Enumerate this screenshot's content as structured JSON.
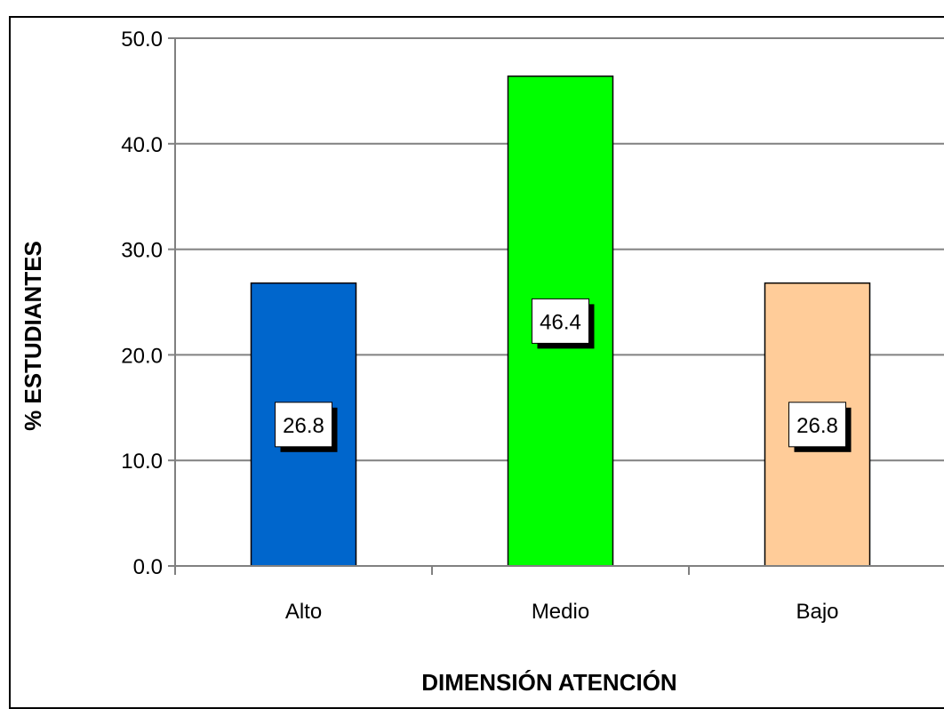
{
  "chart_data": {
    "type": "bar",
    "title": "",
    "xlabel": "DIMENSIÓN ATENCIÓN",
    "ylabel": "% ESTUDIANTES",
    "categories": [
      "Alto",
      "Medio",
      "Bajo"
    ],
    "values": [
      26.8,
      46.4,
      26.8
    ],
    "data_labels": [
      "26.8",
      "46.4",
      "26.8"
    ],
    "colors": [
      "#0066cc",
      "#00ff00",
      "#ffcc99"
    ],
    "ylim": [
      0,
      50
    ],
    "yticks": [
      0,
      10,
      20,
      30,
      40,
      50
    ],
    "ytick_labels": [
      "0.0",
      "10.0",
      "20.0",
      "30.0",
      "40.0",
      "50.0"
    ],
    "grid": true,
    "gridline_color": "#808080",
    "legend": "none"
  }
}
